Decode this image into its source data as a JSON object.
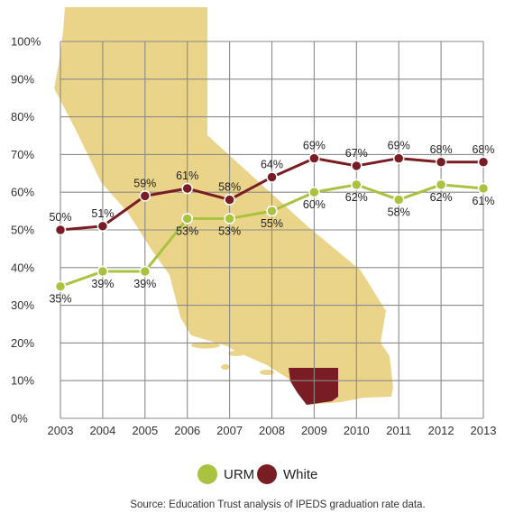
{
  "chart_data": {
    "type": "line",
    "x": [
      "2003",
      "2004",
      "2005",
      "2006",
      "2007",
      "2008",
      "2009",
      "2010",
      "2011",
      "2012",
      "2013"
    ],
    "series": [
      {
        "name": "URM",
        "color": "#a9c23f",
        "values": [
          35,
          39,
          39,
          53,
          53,
          55,
          60,
          62,
          58,
          62,
          61
        ]
      },
      {
        "name": "White",
        "color": "#7a1c24",
        "values": [
          50,
          51,
          59,
          61,
          58,
          64,
          69,
          67,
          69,
          68,
          68
        ]
      }
    ],
    "y_ticks": [
      "0%",
      "10%",
      "20%",
      "30%",
      "40%",
      "50%",
      "60%",
      "70%",
      "80%",
      "90%",
      "100%"
    ],
    "ylim": [
      0,
      100
    ],
    "grid": true,
    "legend_position": "bottom",
    "background_map_color": "#ead48a",
    "highlight_region_color": "#7a1c24",
    "source": "Source: Education Trust analysis of IPEDS graduation rate data."
  }
}
